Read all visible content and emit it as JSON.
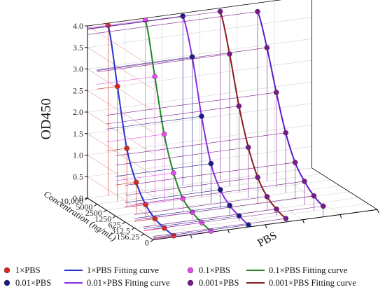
{
  "chart_data": {
    "type": "line",
    "ylabel": "OD450",
    "xlabel": "Concentration (ng/mL)",
    "zlabel": "PBS",
    "ylim": [
      0,
      4.0
    ],
    "y_ticks": [
      "0.0",
      "0.5",
      "1.0",
      "1.5",
      "2.0",
      "2.5",
      "3.0",
      "3.5",
      "4.0"
    ],
    "x_ticks": [
      "10,000",
      "5000",
      "2500",
      "1250",
      "625",
      "312.5",
      "156.25",
      "0"
    ],
    "grid": true,
    "legend_position": "bottom",
    "series": [
      {
        "name": "1×PBS",
        "fit_name": "1×PBS Fitting curve",
        "marker_color": "#d42a1a",
        "curve_color": "#2233cc",
        "values": [
          3.95,
          2.67,
          1.37,
          0.72,
          0.34,
          0.15,
          0.07,
          0.03
        ]
      },
      {
        "name": "0.1×PBS",
        "fit_name": "0.1×PBS Fitting curve",
        "marker_color": "#e04ee8",
        "curve_color": "#1f8a1f",
        "values": [
          3.95,
          2.78,
          1.58,
          0.82,
          0.36,
          0.18,
          0.08,
          0.02
        ]
      },
      {
        "name": "0.01×PBS",
        "fit_name": "0.01×PBS Fitting curve",
        "marker_color": "#1a1a8a",
        "curve_color": "#8a2be2",
        "values": [
          3.93,
          3.12,
          1.88,
          0.92,
          0.45,
          0.22,
          0.12,
          0.05
        ]
      },
      {
        "name": "0.001×PBS",
        "fit_name": "0.001×PBS Fitting curve",
        "marker_color": "#7a1a8a",
        "curve_color": "#8b1a1a",
        "values": [
          3.92,
          3.07,
          2.0,
          1.18,
          0.62,
          0.31,
          0.16,
          0.08
        ]
      },
      {
        "name": "",
        "fit_name": "",
        "marker_color": "#7a1a8a",
        "curve_color": "#5a1ad0",
        "values": [
          3.8,
          3.1,
          2.2,
          1.4,
          0.85,
          0.55,
          0.35,
          0.25
        ]
      }
    ]
  }
}
